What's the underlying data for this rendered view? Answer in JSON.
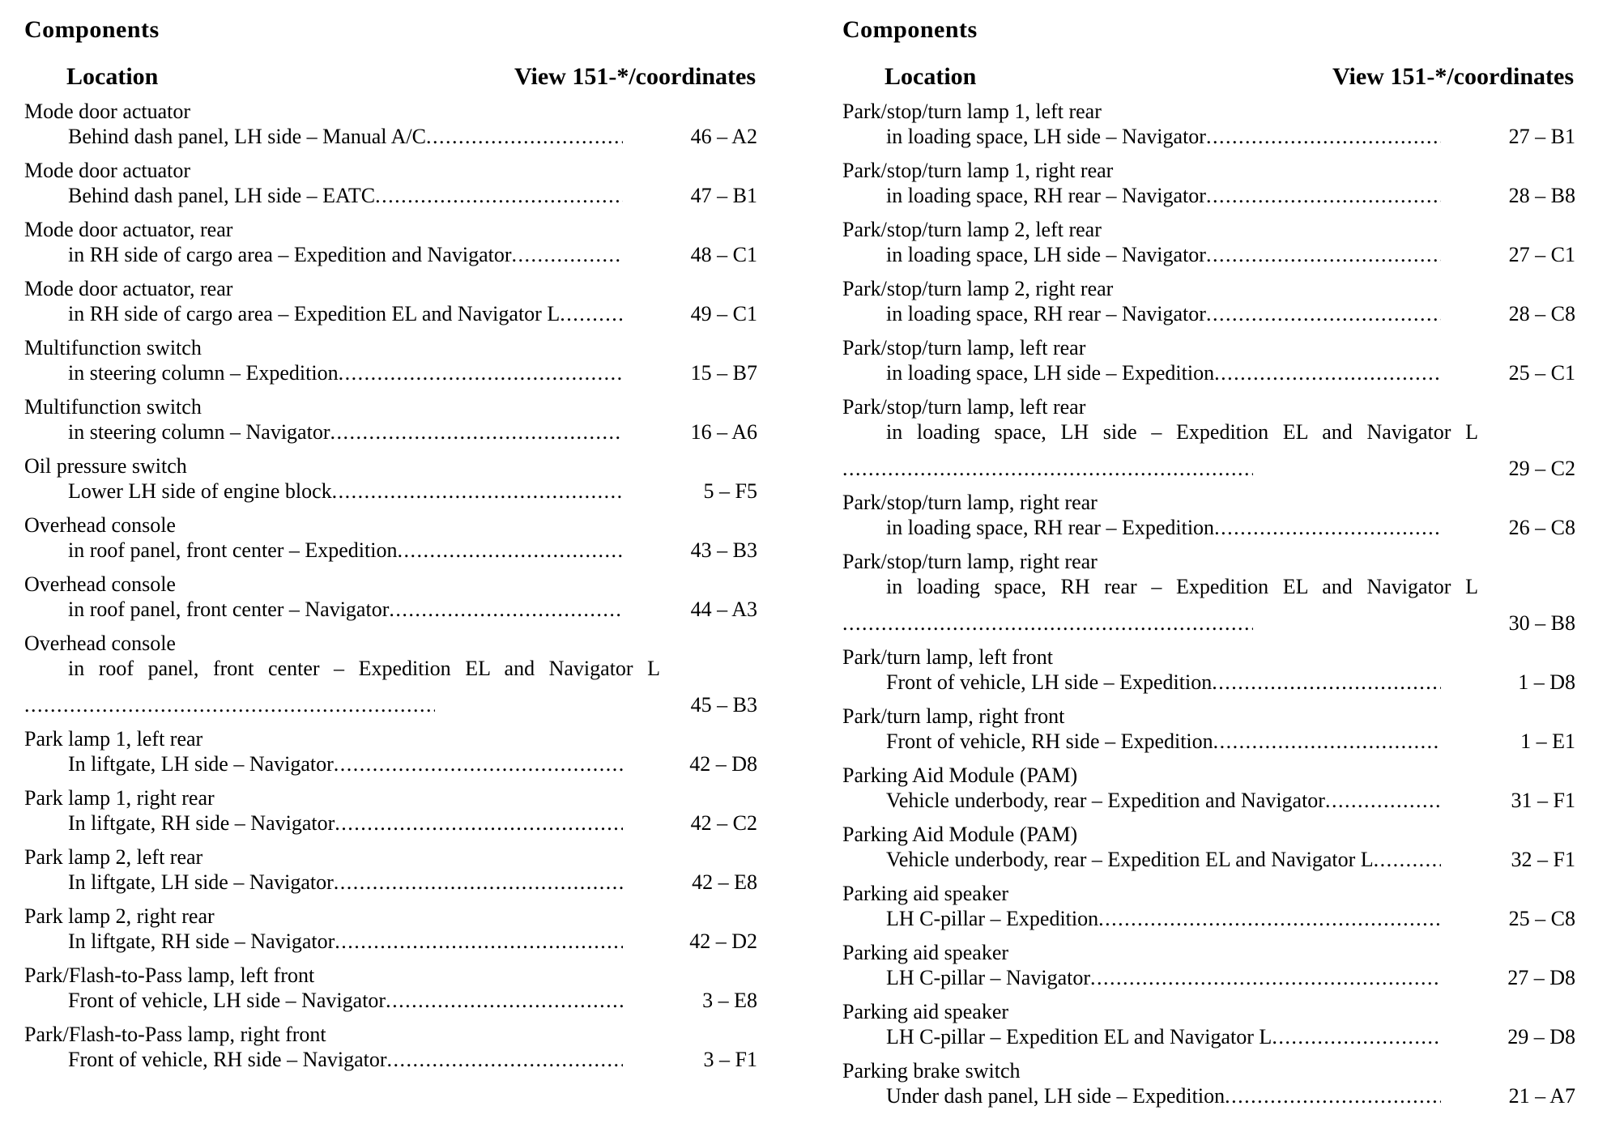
{
  "columns": [
    {
      "heading": "Components",
      "location_header": "Location",
      "view_header": "View 151-*/coordinates",
      "entries": [
        {
          "name": "Mode door actuator",
          "location": "Behind dash panel, LH side – Manual A/C",
          "coord": "46 – A2",
          "layout": "inline"
        },
        {
          "name": "Mode door actuator",
          "location": "Behind dash panel, LH side – EATC",
          "coord": "47 – B1",
          "layout": "inline"
        },
        {
          "name": "Mode door actuator, rear",
          "location": "in RH side of cargo area – Expedition and Navigator",
          "coord": "48 – C1",
          "layout": "inline"
        },
        {
          "name": "Mode door actuator, rear",
          "location": "in RH side of cargo area – Expedition EL and Navigator L",
          "coord": "49 – C1",
          "layout": "inline"
        },
        {
          "name": "Multifunction switch",
          "location": "in steering column – Expedition",
          "coord": "15 – B7",
          "layout": "inline"
        },
        {
          "name": "Multifunction switch",
          "location": "in steering column – Navigator",
          "coord": "16 – A6",
          "layout": "inline"
        },
        {
          "name": "Oil pressure switch",
          "location": "Lower LH side of engine block",
          "coord": "5 – F5",
          "layout": "inline"
        },
        {
          "name": "Overhead console",
          "location": "in roof panel, front center – Expedition",
          "coord": "43 – B3",
          "layout": "inline"
        },
        {
          "name": "Overhead console",
          "location": "in roof panel, front center – Navigator",
          "coord": "44 – A3",
          "layout": "inline"
        },
        {
          "name": "Overhead console",
          "location": "in roof panel, front center – Expedition EL and Navigator L",
          "coord": "45 – B3",
          "layout": "wrapped"
        },
        {
          "name": "Park lamp 1, left rear",
          "location": "In liftgate, LH side – Navigator",
          "coord": "42 – D8",
          "layout": "inline"
        },
        {
          "name": "Park lamp 1, right rear",
          "location": "In liftgate, RH side – Navigator",
          "coord": "42 – C2",
          "layout": "inline"
        },
        {
          "name": "Park lamp 2, left rear",
          "location": "In liftgate, LH side – Navigator",
          "coord": "42 – E8",
          "layout": "inline"
        },
        {
          "name": "Park lamp 2, right rear",
          "location": "In liftgate, RH side – Navigator",
          "coord": "42 – D2",
          "layout": "inline"
        },
        {
          "name": "Park/Flash-to-Pass lamp, left front",
          "location": "Front of vehicle, LH side – Navigator",
          "coord": "3 – E8",
          "layout": "inline"
        },
        {
          "name": "Park/Flash-to-Pass lamp, right front",
          "location": "Front of vehicle, RH side – Navigator",
          "coord": "3 – F1",
          "layout": "inline"
        }
      ]
    },
    {
      "heading": "Components",
      "location_header": "Location",
      "view_header": "View 151-*/coordinates",
      "entries": [
        {
          "name": "Park/stop/turn lamp 1, left rear",
          "location": "in loading space, LH side – Navigator",
          "coord": "27 – B1",
          "layout": "inline"
        },
        {
          "name": "Park/stop/turn lamp 1, right rear",
          "location": "in loading space, RH rear – Navigator",
          "coord": "28 – B8",
          "layout": "inline"
        },
        {
          "name": "Park/stop/turn lamp 2, left rear",
          "location": "in loading space, LH side – Navigator",
          "coord": "27 – C1",
          "layout": "inline"
        },
        {
          "name": "Park/stop/turn lamp 2, right rear",
          "location": "in loading space, RH rear – Navigator",
          "coord": "28 – C8",
          "layout": "inline"
        },
        {
          "name": "Park/stop/turn lamp, left rear",
          "location": "in loading space, LH side – Expedition",
          "coord": "25 – C1",
          "layout": "inline"
        },
        {
          "name": "Park/stop/turn lamp, left rear",
          "location": "in loading space, LH side – Expedition EL and Navigator L",
          "coord": "29 – C2",
          "layout": "wrapped"
        },
        {
          "name": "Park/stop/turn lamp, right rear",
          "location": "in loading space, RH rear – Expedition",
          "coord": "26 – C8",
          "layout": "inline"
        },
        {
          "name": "Park/stop/turn lamp, right rear",
          "location": "in loading space, RH rear – Expedition EL and Navigator L",
          "coord": "30 – B8",
          "layout": "wrapped"
        },
        {
          "name": "Park/turn lamp, left front",
          "location": "Front of vehicle, LH side – Expedition",
          "coord": "1 – D8",
          "layout": "inline"
        },
        {
          "name": "Park/turn lamp, right front",
          "location": "Front of vehicle, RH side – Expedition",
          "coord": "1 – E1",
          "layout": "inline"
        },
        {
          "name": "Parking Aid Module (PAM)",
          "location": "Vehicle underbody, rear – Expedition and Navigator",
          "coord": "31 – F1",
          "layout": "inline"
        },
        {
          "name": "Parking Aid Module (PAM)",
          "location": "Vehicle underbody, rear – Expedition EL and Navigator L",
          "coord": "32 – F1",
          "layout": "inline"
        },
        {
          "name": "Parking aid speaker",
          "location": "LH C-pillar – Expedition",
          "coord": "25 – C8",
          "layout": "inline"
        },
        {
          "name": "Parking aid speaker",
          "location": "LH C-pillar – Navigator",
          "coord": "27 – D8",
          "layout": "inline"
        },
        {
          "name": "Parking aid speaker",
          "location": "LH C-pillar – Expedition EL and Navigator L",
          "coord": "29 – D8",
          "layout": "inline"
        },
        {
          "name": "Parking brake switch",
          "location": "Under dash panel, LH side – Expedition",
          "coord": "21 – A7",
          "layout": "inline"
        }
      ]
    }
  ]
}
